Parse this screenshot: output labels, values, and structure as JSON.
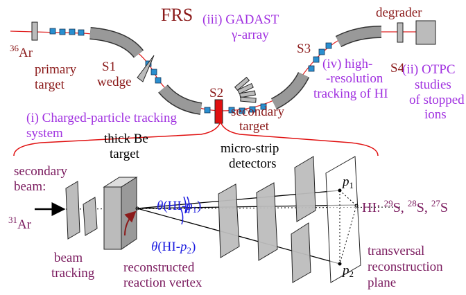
{
  "title": "FRS",
  "top": {
    "primary_beam": {
      "mass": "36",
      "element": "Ar"
    },
    "primary_target": [
      "primary",
      "target"
    ],
    "s1": "S1",
    "wedge": "wedge",
    "gadast": [
      "(iii) GADAST",
      "γ-array"
    ],
    "s2": "S2",
    "secondary_target": [
      "secondary",
      "target"
    ],
    "s3": "S3",
    "high_res": [
      "(iv) high-",
      "-resolution",
      "tracking of HI"
    ],
    "degrader": "degrader",
    "s4": "S4",
    "otpc": [
      "(ii) OTPC",
      "studies",
      "of stopped",
      "ions"
    ],
    "tracking_system": [
      "(i) Charged-particle tracking",
      "system"
    ]
  },
  "bottom": {
    "secondary_beam": [
      "secondary",
      "beam:"
    ],
    "be_target": [
      "thick Be",
      "target"
    ],
    "detectors": [
      "micro-strip",
      "detectors"
    ],
    "theta_p1": [
      "θ",
      "(HI-",
      "p",
      "1",
      ")"
    ],
    "theta_p2": [
      "θ",
      "(HI-",
      "p",
      "2",
      ")"
    ],
    "incoming": {
      "mass": "31",
      "element": "Ar"
    },
    "heavy_ions": [
      "HI: ",
      "29",
      "S, ",
      "28",
      "S, ",
      "27",
      "S"
    ],
    "p1": [
      "p",
      "1"
    ],
    "p2": [
      "p",
      "2"
    ],
    "beam_tracking": [
      "beam",
      "tracking"
    ],
    "vertex": [
      "reconstructed",
      "reaction vertex"
    ],
    "plane": [
      "transversal",
      "reconstruction",
      "plane"
    ]
  }
}
